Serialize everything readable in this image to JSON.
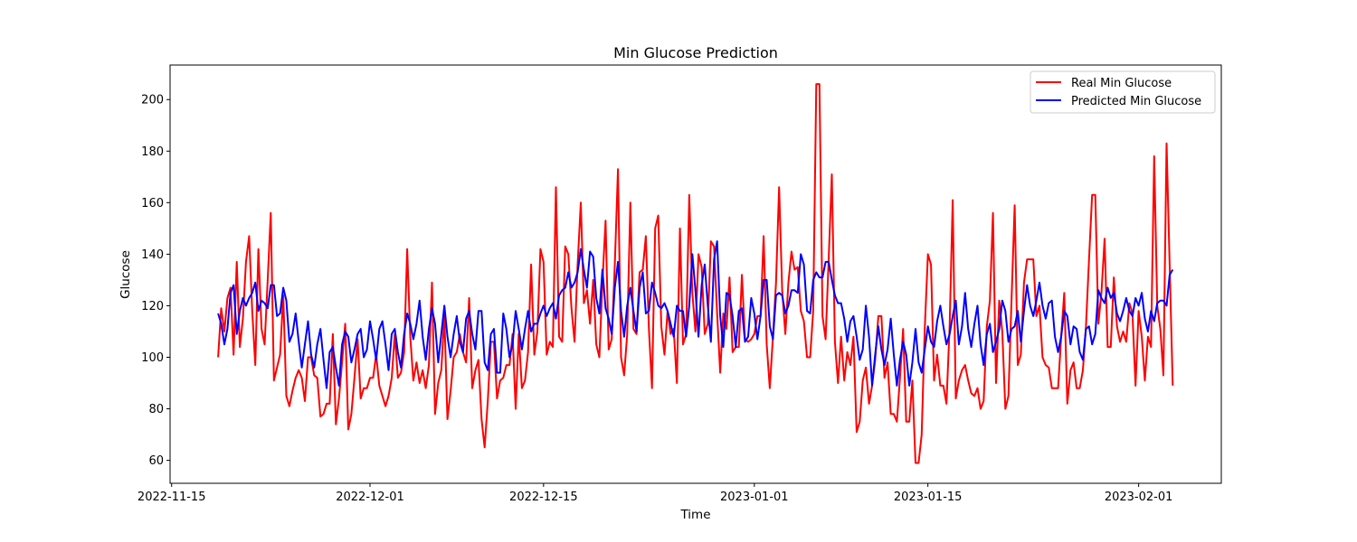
{
  "chart_data": {
    "type": "line",
    "title": "Min Glucose Prediction",
    "xlabel": "Time",
    "ylabel": "Glucose",
    "xlim": [
      "2022-11-14 21:00",
      "2023-02-07 16:00"
    ],
    "ylim": [
      51.1,
      213.4
    ],
    "x_ticks": [
      "2022-11-15",
      "2022-12-01",
      "2022-12-15",
      "2023-01-01",
      "2023-01-15",
      "2023-02-01"
    ],
    "y_ticks": [
      60,
      80,
      100,
      120,
      140,
      160,
      180,
      200
    ],
    "grid": false,
    "legend_position": "top-right",
    "x": [
      "2022-11-18 18:00",
      "2022-11-19 00:00",
      "2022-11-19 06:00",
      "2022-11-19 12:00",
      "2022-11-19 18:00",
      "2022-11-20 00:00",
      "2022-11-20 06:00",
      "2022-11-20 12:00",
      "2022-11-20 18:00",
      "2022-11-21 00:00",
      "2022-11-21 06:00",
      "2022-11-21 12:00",
      "2022-11-21 18:00",
      "2022-11-22 00:00",
      "2022-11-22 06:00",
      "2022-11-22 12:00",
      "2022-11-22 18:00",
      "2022-11-23 00:00",
      "2022-11-23 06:00",
      "2022-11-23 12:00",
      "2022-11-23 18:00",
      "2022-11-24 00:00",
      "2022-11-24 06:00",
      "2022-11-24 12:00",
      "2022-11-24 18:00",
      "2022-11-25 00:00",
      "2022-11-25 06:00",
      "2022-11-25 12:00",
      "2022-11-25 18:00",
      "2022-11-26 00:00",
      "2022-11-26 06:00",
      "2022-11-26 12:00",
      "2022-11-26 18:00",
      "2022-11-27 00:00",
      "2022-11-27 06:00",
      "2022-11-27 12:00",
      "2022-11-27 18:00",
      "2022-11-28 00:00",
      "2022-11-28 06:00",
      "2022-11-28 12:00",
      "2022-11-28 18:00",
      "2022-11-29 00:00",
      "2022-11-29 06:00",
      "2022-11-29 12:00",
      "2022-11-29 18:00",
      "2022-11-30 00:00",
      "2022-11-30 06:00",
      "2022-11-30 12:00",
      "2022-11-30 18:00",
      "2022-12-01 00:00",
      "2022-12-01 06:00",
      "2022-12-01 12:00",
      "2022-12-01 18:00",
      "2022-12-02 00:00",
      "2022-12-02 06:00",
      "2022-12-02 12:00",
      "2022-12-02 18:00",
      "2022-12-03 00:00",
      "2022-12-03 06:00",
      "2022-12-03 12:00",
      "2022-12-03 18:00",
      "2022-12-04 00:00",
      "2022-12-04 06:00",
      "2022-12-04 12:00",
      "2022-12-04 18:00",
      "2022-12-05 00:00",
      "2022-12-05 06:00",
      "2022-12-05 12:00",
      "2022-12-05 18:00",
      "2022-12-06 00:00",
      "2022-12-06 06:00",
      "2022-12-06 12:00",
      "2022-12-06 18:00",
      "2022-12-07 00:00",
      "2022-12-07 06:00",
      "2022-12-07 12:00",
      "2022-12-07 18:00",
      "2022-12-08 00:00",
      "2022-12-08 06:00",
      "2022-12-08 12:00",
      "2022-12-08 18:00",
      "2022-12-09 00:00",
      "2022-12-09 06:00",
      "2022-12-09 12:00",
      "2022-12-09 18:00",
      "2022-12-10 00:00",
      "2022-12-10 06:00",
      "2022-12-10 12:00",
      "2022-12-10 18:00",
      "2022-12-11 00:00",
      "2022-12-11 06:00",
      "2022-12-11 12:00",
      "2022-12-11 18:00",
      "2022-12-12 00:00",
      "2022-12-12 06:00",
      "2022-12-12 12:00",
      "2022-12-12 18:00",
      "2022-12-13 00:00",
      "2022-12-13 06:00",
      "2022-12-13 12:00",
      "2022-12-13 18:00",
      "2022-12-14 00:00",
      "2022-12-14 06:00",
      "2022-12-14 12:00",
      "2022-12-14 18:00",
      "2022-12-15 00:00",
      "2022-12-15 06:00",
      "2022-12-15 12:00",
      "2022-12-15 18:00",
      "2022-12-16 00:00",
      "2022-12-16 06:00",
      "2022-12-16 12:00",
      "2022-12-16 18:00",
      "2022-12-17 00:00",
      "2022-12-17 06:00",
      "2022-12-17 12:00",
      "2022-12-17 18:00",
      "2022-12-18 00:00",
      "2022-12-18 06:00",
      "2022-12-18 12:00",
      "2022-12-18 18:00",
      "2022-12-19 00:00",
      "2022-12-19 06:00",
      "2022-12-19 12:00",
      "2022-12-19 18:00",
      "2022-12-20 00:00",
      "2022-12-20 06:00",
      "2022-12-20 12:00",
      "2022-12-20 18:00",
      "2022-12-21 00:00",
      "2022-12-21 06:00",
      "2022-12-21 12:00",
      "2022-12-21 18:00",
      "2022-12-22 00:00",
      "2022-12-22 06:00",
      "2022-12-22 12:00",
      "2022-12-22 18:00",
      "2022-12-23 00:00",
      "2022-12-23 06:00",
      "2022-12-23 12:00",
      "2022-12-23 18:00",
      "2022-12-24 00:00",
      "2022-12-24 06:00",
      "2022-12-24 12:00",
      "2022-12-24 18:00",
      "2022-12-25 00:00",
      "2022-12-25 06:00",
      "2022-12-25 12:00",
      "2022-12-25 18:00",
      "2022-12-26 00:00",
      "2022-12-26 06:00",
      "2022-12-26 12:00",
      "2022-12-26 18:00",
      "2022-12-27 00:00",
      "2022-12-27 06:00",
      "2022-12-27 12:00",
      "2022-12-27 18:00",
      "2022-12-28 00:00",
      "2022-12-28 06:00",
      "2022-12-28 12:00",
      "2022-12-28 18:00",
      "2022-12-29 00:00",
      "2022-12-29 06:00",
      "2022-12-29 12:00",
      "2022-12-29 18:00",
      "2022-12-30 00:00",
      "2022-12-30 06:00",
      "2022-12-30 12:00",
      "2022-12-30 18:00",
      "2022-12-31 00:00",
      "2022-12-31 06:00",
      "2022-12-31 12:00",
      "2022-12-31 18:00",
      "2023-01-01 00:00",
      "2023-01-01 06:00",
      "2023-01-01 12:00",
      "2023-01-01 18:00",
      "2023-01-02 00:00",
      "2023-01-02 06:00",
      "2023-01-02 12:00",
      "2023-01-02 18:00",
      "2023-01-03 00:00",
      "2023-01-03 06:00",
      "2023-01-03 12:00",
      "2023-01-03 18:00",
      "2023-01-04 00:00",
      "2023-01-04 06:00",
      "2023-01-04 12:00",
      "2023-01-04 18:00",
      "2023-01-05 00:00",
      "2023-01-05 06:00",
      "2023-01-05 12:00",
      "2023-01-05 18:00",
      "2023-01-06 00:00",
      "2023-01-06 06:00",
      "2023-01-06 12:00",
      "2023-01-06 18:00",
      "2023-01-07 00:00",
      "2023-01-07 06:00",
      "2023-01-07 12:00",
      "2023-01-07 18:00",
      "2023-01-08 00:00",
      "2023-01-08 06:00",
      "2023-01-08 12:00",
      "2023-01-08 18:00",
      "2023-01-09 00:00",
      "2023-01-09 06:00",
      "2023-01-09 12:00",
      "2023-01-09 18:00",
      "2023-01-10 00:00",
      "2023-01-10 06:00",
      "2023-01-10 12:00",
      "2023-01-10 18:00",
      "2023-01-11 00:00",
      "2023-01-11 06:00",
      "2023-01-11 12:00",
      "2023-01-11 18:00",
      "2023-01-12 00:00",
      "2023-01-12 06:00",
      "2023-01-12 12:00",
      "2023-01-12 18:00",
      "2023-01-13 00:00",
      "2023-01-13 06:00",
      "2023-01-13 12:00",
      "2023-01-13 18:00",
      "2023-01-14 00:00",
      "2023-01-14 06:00",
      "2023-01-14 12:00",
      "2023-01-14 18:00",
      "2023-01-15 00:00",
      "2023-01-15 06:00",
      "2023-01-15 12:00",
      "2023-01-15 18:00",
      "2023-01-16 00:00",
      "2023-01-16 06:00",
      "2023-01-16 12:00",
      "2023-01-16 18:00",
      "2023-01-17 00:00",
      "2023-01-17 06:00",
      "2023-01-17 12:00",
      "2023-01-17 18:00",
      "2023-01-18 00:00",
      "2023-01-18 06:00",
      "2023-01-18 12:00",
      "2023-01-18 18:00",
      "2023-01-19 00:00",
      "2023-01-19 06:00",
      "2023-01-19 12:00",
      "2023-01-19 18:00",
      "2023-01-20 00:00",
      "2023-01-20 06:00",
      "2023-01-20 12:00",
      "2023-01-20 18:00",
      "2023-01-21 00:00",
      "2023-01-21 06:00",
      "2023-01-21 12:00",
      "2023-01-21 18:00",
      "2023-01-22 00:00",
      "2023-01-22 06:00",
      "2023-01-22 12:00",
      "2023-01-22 18:00",
      "2023-01-23 00:00",
      "2023-01-23 06:00",
      "2023-01-23 12:00",
      "2023-01-23 18:00",
      "2023-01-24 00:00",
      "2023-01-24 06:00",
      "2023-01-24 12:00",
      "2023-01-24 18:00",
      "2023-01-25 00:00",
      "2023-01-25 06:00",
      "2023-01-25 12:00",
      "2023-01-25 18:00",
      "2023-01-26 00:00",
      "2023-01-26 06:00",
      "2023-01-26 12:00",
      "2023-01-26 18:00",
      "2023-01-27 00:00",
      "2023-01-27 06:00",
      "2023-01-27 12:00",
      "2023-01-27 18:00",
      "2023-01-28 00:00",
      "2023-01-28 06:00",
      "2023-01-28 12:00",
      "2023-01-28 18:00",
      "2023-01-29 00:00",
      "2023-01-29 06:00",
      "2023-01-29 12:00",
      "2023-01-29 18:00",
      "2023-01-30 00:00",
      "2023-01-30 06:00",
      "2023-01-30 12:00",
      "2023-01-30 18:00",
      "2023-01-31 00:00",
      "2023-01-31 06:00",
      "2023-01-31 12:00",
      "2023-01-31 18:00",
      "2023-02-01 00:00",
      "2023-02-01 06:00",
      "2023-02-01 12:00",
      "2023-02-01 18:00",
      "2023-02-02 00:00",
      "2023-02-02 06:00",
      "2023-02-02 12:00",
      "2023-02-02 18:00",
      "2023-02-03 00:00",
      "2023-02-03 06:00",
      "2023-02-03 12:00",
      "2023-02-03 18:00"
    ],
    "series": [
      {
        "name": "Real Min Glucose",
        "color": "#ff0000",
        "values": [
          100,
          119,
          110,
          123,
          127,
          101,
          137,
          104,
          115,
          137,
          147,
          118,
          97,
          142,
          111,
          105,
          130,
          156,
          91,
          96,
          101,
          124,
          85,
          81,
          87,
          92,
          95,
          92,
          83,
          100,
          100,
          93,
          92,
          77,
          78,
          82,
          82,
          109,
          74,
          84,
          98,
          113,
          72,
          78,
          92,
          107,
          84,
          88,
          88,
          92,
          92,
          101,
          89,
          85,
          81,
          85,
          92,
          109,
          92,
          94,
          102,
          142,
          108,
          91,
          98,
          90,
          95,
          88,
          97,
          129,
          78,
          90,
          95,
          116,
          76,
          87,
          100,
          102,
          109,
          102,
          98,
          123,
          88,
          95,
          99,
          76,
          65,
          83,
          106,
          106,
          84,
          91,
          92,
          97,
          97,
          109,
          80,
          109,
          88,
          91,
          102,
          136,
          101,
          110,
          142,
          137,
          101,
          106,
          104,
          166,
          108,
          106,
          143,
          140,
          119,
          106,
          136,
          160,
          121,
          126,
          113,
          130,
          105,
          100,
          129,
          153,
          103,
          107,
          136,
          173,
          100,
          93,
          109,
          160,
          111,
          109,
          133,
          134,
          147,
          111,
          88,
          150,
          155,
          112,
          101,
          118,
          109,
          111,
          90,
          150,
          105,
          109,
          163,
          125,
          110,
          140,
          135,
          109,
          113,
          145,
          143,
          117,
          94,
          117,
          111,
          131,
          102,
          104,
          104,
          132,
          107,
          106,
          107,
          109,
          116,
          116,
          147,
          105,
          88,
          108,
          129,
          166,
          126,
          109,
          129,
          141,
          134,
          135,
          118,
          114,
          100,
          100,
          118,
          206,
          206,
          116,
          107,
          138,
          171,
          106,
          90,
          108,
          91,
          102,
          97,
          108,
          71,
          75,
          91,
          96,
          82,
          89,
          99,
          116,
          116,
          92,
          98,
          78,
          78,
          75,
          92,
          111,
          75,
          75,
          91,
          59,
          59,
          70,
          111,
          140,
          136,
          91,
          101,
          89,
          89,
          82,
          112,
          161,
          84,
          91,
          95,
          97,
          91,
          86,
          85,
          88,
          80,
          83,
          112,
          122,
          156,
          90,
          122,
          110,
          80,
          85,
          123,
          159,
          97,
          101,
          129,
          138,
          138,
          138,
          116,
          120,
          100,
          97,
          96,
          88,
          88,
          88,
          108,
          125,
          82,
          95,
          98,
          88,
          88,
          95,
          112,
          138,
          163,
          163,
          113,
          125,
          146,
          104,
          104,
          131,
          112,
          106,
          110,
          106,
          121,
          117,
          89,
          118,
          108,
          91,
          108,
          104,
          178,
          120,
          111,
          93,
          183,
          136,
          89
        ]
      },
      {
        "name": "Predicted Min Glucose",
        "color": "#0000ff",
        "values": [
          117,
          113,
          105,
          111,
          125,
          128,
          109,
          118,
          123,
          120,
          123,
          125,
          129,
          118,
          122,
          121,
          119,
          128,
          128,
          116,
          117,
          127,
          122,
          106,
          109,
          117,
          106,
          96,
          105,
          114,
          101,
          96,
          105,
          111,
          99,
          88,
          102,
          104,
          96,
          89,
          105,
          110,
          108,
          98,
          103,
          109,
          111,
          100,
          103,
          114,
          107,
          99,
          111,
          114,
          105,
          95,
          109,
          111,
          102,
          96,
          109,
          117,
          113,
          107,
          113,
          122,
          108,
          99,
          111,
          119,
          113,
          98,
          109,
          120,
          108,
          100,
          109,
          116,
          106,
          102,
          115,
          118,
          109,
          103,
          118,
          118,
          98,
          95,
          109,
          111,
          94,
          94,
          117,
          111,
          100,
          105,
          118,
          111,
          103,
          111,
          118,
          110,
          113,
          113,
          117,
          120,
          116,
          119,
          121,
          115,
          124,
          126,
          127,
          133,
          127,
          129,
          133,
          142,
          134,
          127,
          141,
          139,
          123,
          117,
          134,
          119,
          115,
          109,
          127,
          137,
          118,
          108,
          120,
          127,
          118,
          110,
          127,
          133,
          117,
          118,
          129,
          125,
          120,
          119,
          121,
          118,
          113,
          108,
          120,
          118,
          118,
          108,
          120,
          140,
          126,
          108,
          128,
          136,
          120,
          106,
          138,
          145,
          116,
          104,
          125,
          124,
          116,
          104,
          118,
          119,
          106,
          108,
          123,
          117,
          107,
          116,
          130,
          130,
          112,
          107,
          124,
          125,
          124,
          117,
          120,
          126,
          126,
          125,
          140,
          136,
          118,
          117,
          130,
          133,
          131,
          131,
          137,
          137,
          130,
          124,
          121,
          121,
          115,
          106,
          114,
          116,
          108,
          99,
          103,
          120,
          108,
          89,
          101,
          112,
          103,
          97,
          103,
          115,
          101,
          89,
          99,
          106,
          101,
          89,
          98,
          111,
          98,
          94,
          103,
          112,
          106,
          104,
          114,
          120,
          112,
          105,
          109,
          116,
          122,
          105,
          112,
          125,
          111,
          104,
          113,
          120,
          105,
          97,
          109,
          113,
          102,
          106,
          111,
          122,
          118,
          106,
          111,
          112,
          118,
          106,
          118,
          128,
          120,
          116,
          122,
          129,
          120,
          115,
          121,
          122,
          108,
          102,
          108,
          118,
          116,
          105,
          112,
          111,
          102,
          99,
          111,
          112,
          105,
          109,
          126,
          123,
          121,
          127,
          123,
          125,
          117,
          114,
          118,
          123,
          118,
          116,
          123,
          120,
          125,
          115,
          110,
          118,
          114,
          121,
          122,
          122,
          120,
          132,
          134
        ]
      }
    ]
  }
}
